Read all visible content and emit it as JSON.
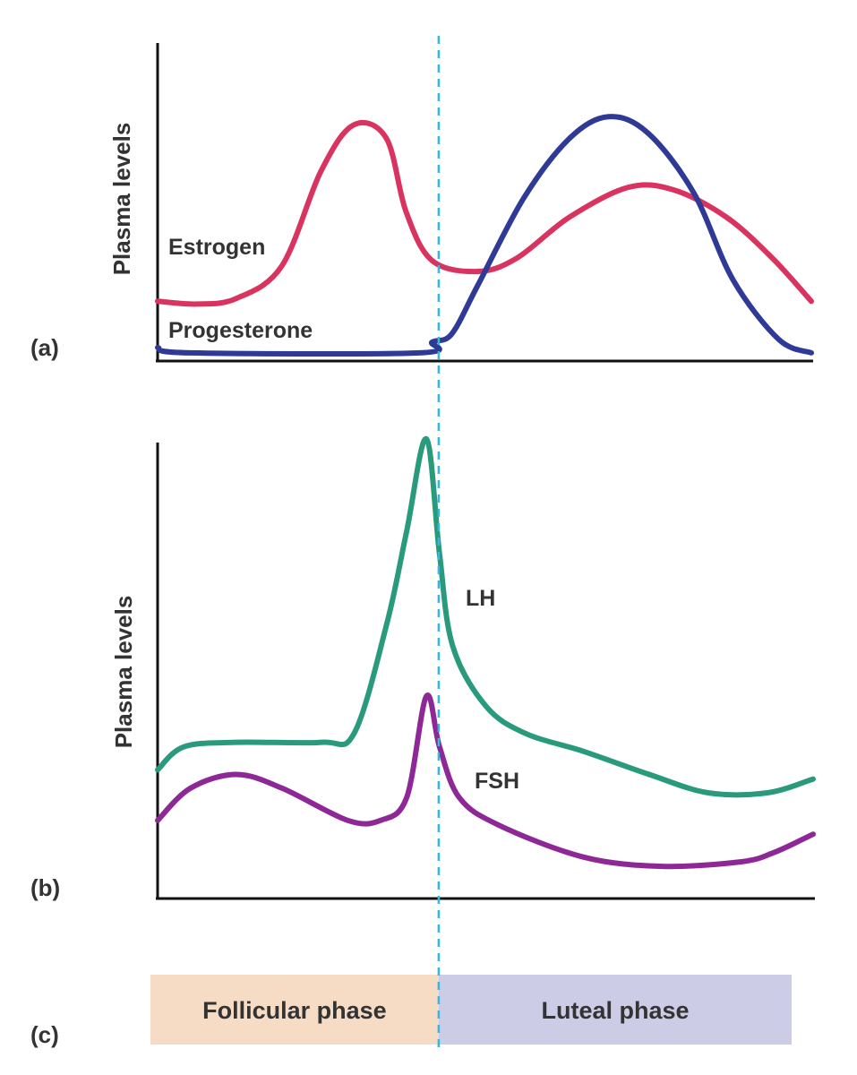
{
  "chart_data": [
    {
      "type": "line",
      "panel_label": "(a)",
      "ylabel": "Plasma levels",
      "xlabel": "",
      "x_unit": "fraction of cycle (0 = start, 1 = end)",
      "ylim": [
        0,
        1
      ],
      "series": [
        {
          "name": "Estrogen",
          "color": "#d9335f",
          "points": [
            [
              0.0,
              0.22
            ],
            [
              0.06,
              0.21
            ],
            [
              0.12,
              0.23
            ],
            [
              0.19,
              0.35
            ],
            [
              0.25,
              0.7
            ],
            [
              0.3,
              0.87
            ],
            [
              0.35,
              0.82
            ],
            [
              0.38,
              0.55
            ],
            [
              0.42,
              0.37
            ],
            [
              0.49,
              0.33
            ],
            [
              0.55,
              0.38
            ],
            [
              0.63,
              0.53
            ],
            [
              0.72,
              0.64
            ],
            [
              0.79,
              0.63
            ],
            [
              0.87,
              0.53
            ],
            [
              0.94,
              0.38
            ],
            [
              1.0,
              0.22
            ]
          ]
        },
        {
          "name": "Progesterone",
          "color": "#2e3a95",
          "points": [
            [
              0.0,
              0.05
            ],
            [
              0.05,
              0.03
            ],
            [
              0.4,
              0.03
            ],
            [
              0.42,
              0.07
            ],
            [
              0.45,
              0.1
            ],
            [
              0.49,
              0.28
            ],
            [
              0.56,
              0.6
            ],
            [
              0.63,
              0.82
            ],
            [
              0.69,
              0.9
            ],
            [
              0.75,
              0.84
            ],
            [
              0.82,
              0.62
            ],
            [
              0.88,
              0.3
            ],
            [
              0.95,
              0.08
            ],
            [
              1.0,
              0.03
            ]
          ]
        }
      ]
    },
    {
      "type": "line",
      "panel_label": "(b)",
      "ylabel": "Plasma levels",
      "xlabel": "",
      "x_unit": "fraction of cycle (0 = start, 1 = end)",
      "ylim": [
        0,
        1
      ],
      "series": [
        {
          "name": "LH",
          "color": "#2a9a7d",
          "points": [
            [
              0.0,
              0.28
            ],
            [
              0.04,
              0.33
            ],
            [
              0.12,
              0.34
            ],
            [
              0.25,
              0.34
            ],
            [
              0.3,
              0.36
            ],
            [
              0.35,
              0.6
            ],
            [
              0.38,
              0.8
            ],
            [
              0.41,
              1.0
            ],
            [
              0.43,
              0.75
            ],
            [
              0.45,
              0.55
            ],
            [
              0.5,
              0.42
            ],
            [
              0.56,
              0.36
            ],
            [
              0.65,
              0.32
            ],
            [
              0.75,
              0.27
            ],
            [
              0.84,
              0.23
            ],
            [
              0.93,
              0.23
            ],
            [
              1.0,
              0.26
            ]
          ]
        },
        {
          "name": "FSH",
          "color": "#8e2896",
          "points": [
            [
              0.0,
              0.17
            ],
            [
              0.05,
              0.24
            ],
            [
              0.12,
              0.27
            ],
            [
              0.19,
              0.24
            ],
            [
              0.29,
              0.17
            ],
            [
              0.34,
              0.17
            ],
            [
              0.38,
              0.22
            ],
            [
              0.41,
              0.44
            ],
            [
              0.43,
              0.33
            ],
            [
              0.46,
              0.22
            ],
            [
              0.52,
              0.16
            ],
            [
              0.65,
              0.09
            ],
            [
              0.77,
              0.07
            ],
            [
              0.89,
              0.08
            ],
            [
              0.94,
              0.1
            ],
            [
              1.0,
              0.14
            ]
          ]
        }
      ]
    },
    {
      "type": "bar",
      "panel_label": "(c)",
      "orientation": "horizontal",
      "categories": [
        "Follicular phase",
        "Luteal phase"
      ],
      "values": [
        0.5,
        0.5
      ],
      "colors": [
        "#f6dbc5",
        "#cdcce6"
      ]
    }
  ],
  "ovulation_line": {
    "x": 0.43,
    "color": "#39b6d8"
  },
  "labels": {
    "estrogen": "Estrogen",
    "progesterone": "Progesterone",
    "lh": "LH",
    "fsh": "FSH",
    "follicular": "Follicular phase",
    "luteal": "Luteal phase",
    "ylabel_a": "Plasma levels",
    "ylabel_b": "Plasma levels",
    "panel_a": "(a)",
    "panel_b": "(b)",
    "panel_c": "(c)"
  }
}
